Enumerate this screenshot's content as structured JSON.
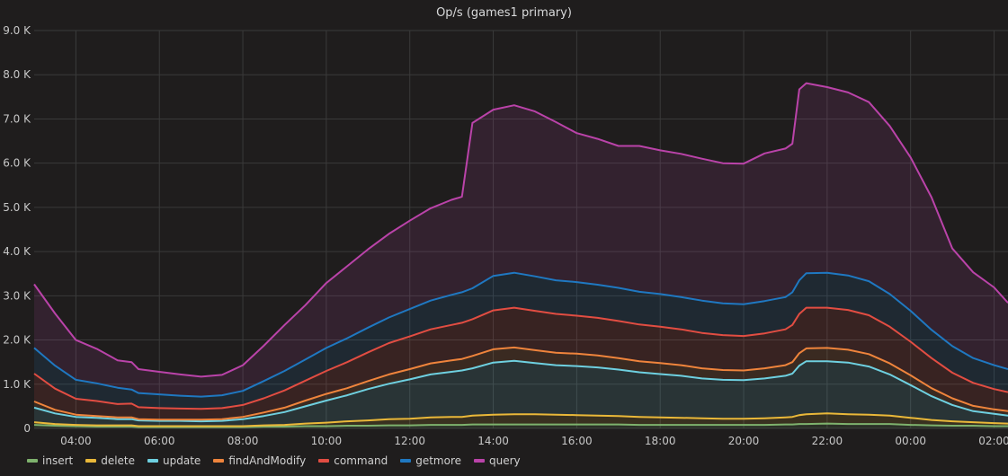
{
  "chart_data": {
    "type": "area",
    "title": "Op/s (games1 primary)",
    "xlabel": "",
    "ylabel": "",
    "ylim": [
      0,
      9000
    ],
    "xlim": [
      "03:00",
      "02:20"
    ],
    "yticks": [
      {
        "value": 0,
        "label": "0"
      },
      {
        "value": 1000,
        "label": "1.0 K"
      },
      {
        "value": 2000,
        "label": "2.0 K"
      },
      {
        "value": 3000,
        "label": "3.0 K"
      },
      {
        "value": 4000,
        "label": "4.0 K"
      },
      {
        "value": 5000,
        "label": "5.0 K"
      },
      {
        "value": 6000,
        "label": "6.0 K"
      },
      {
        "value": 7000,
        "label": "7.0 K"
      },
      {
        "value": 8000,
        "label": "8.0 K"
      },
      {
        "value": 9000,
        "label": "9.0 K"
      }
    ],
    "xticks": [
      "04:00",
      "06:00",
      "08:00",
      "10:00",
      "12:00",
      "14:00",
      "16:00",
      "18:00",
      "20:00",
      "22:00",
      "00:00",
      "02:00"
    ],
    "grid": true,
    "legend_position": "bottom",
    "x": [
      "03:00",
      "03:30",
      "04:00",
      "04:30",
      "05:00",
      "05:20",
      "05:30",
      "06:00",
      "06:30",
      "07:00",
      "07:30",
      "08:00",
      "08:30",
      "09:00",
      "09:30",
      "10:00",
      "10:30",
      "11:00",
      "11:30",
      "12:00",
      "12:30",
      "13:00",
      "13:15",
      "13:30",
      "14:00",
      "14:30",
      "15:00",
      "15:30",
      "16:00",
      "16:30",
      "17:00",
      "17:30",
      "18:00",
      "18:30",
      "19:00",
      "19:30",
      "20:00",
      "20:30",
      "21:00",
      "21:10",
      "21:20",
      "21:30",
      "22:00",
      "22:30",
      "23:00",
      "23:30",
      "00:00",
      "00:30",
      "01:00",
      "01:30",
      "02:00",
      "02:20"
    ],
    "series": [
      {
        "name": "insert",
        "color": "#7eb26d",
        "values": [
          80,
          60,
          50,
          40,
          40,
          40,
          30,
          30,
          30,
          30,
          30,
          30,
          40,
          40,
          50,
          50,
          60,
          60,
          70,
          70,
          80,
          80,
          80,
          90,
          90,
          90,
          90,
          90,
          90,
          90,
          90,
          80,
          80,
          80,
          80,
          80,
          80,
          80,
          90,
          90,
          100,
          100,
          110,
          100,
          100,
          100,
          80,
          70,
          60,
          60,
          50,
          50
        ]
      },
      {
        "name": "delete",
        "color": "#eab839",
        "values": [
          60,
          40,
          30,
          30,
          30,
          30,
          20,
          20,
          20,
          20,
          20,
          20,
          30,
          40,
          60,
          80,
          100,
          120,
          140,
          150,
          170,
          180,
          180,
          200,
          220,
          230,
          230,
          220,
          210,
          200,
          190,
          180,
          170,
          160,
          150,
          140,
          140,
          150,
          160,
          170,
          200,
          220,
          230,
          220,
          210,
          190,
          160,
          120,
          100,
          80,
          70,
          60
        ]
      },
      {
        "name": "update",
        "color": "#6ed0e0",
        "values": [
          330,
          240,
          180,
          170,
          140,
          140,
          130,
          120,
          120,
          110,
          120,
          160,
          210,
          290,
          390,
          500,
          590,
          710,
          800,
          890,
          970,
          1020,
          1050,
          1070,
          1180,
          1210,
          1160,
          1120,
          1110,
          1090,
          1050,
          1010,
          980,
          950,
          900,
          880,
          870,
          900,
          940,
          980,
          1120,
          1200,
          1180,
          1170,
          1090,
          930,
          740,
          540,
          370,
          250,
          210,
          180
        ]
      },
      {
        "name": "findAndModify",
        "color": "#ef843c",
        "values": [
          140,
          80,
          50,
          40,
          40,
          40,
          30,
          30,
          30,
          40,
          40,
          50,
          80,
          100,
          130,
          150,
          160,
          180,
          210,
          230,
          250,
          260,
          260,
          280,
          300,
          300,
          290,
          280,
          280,
          270,
          260,
          250,
          250,
          240,
          230,
          220,
          220,
          230,
          240,
          260,
          280,
          290,
          300,
          290,
          280,
          250,
          220,
          180,
          150,
          120,
          100,
          100
        ]
      },
      {
        "name": "command",
        "color": "#e24d42",
        "values": [
          630,
          480,
          360,
          340,
          300,
          310,
          270,
          260,
          250,
          240,
          250,
          270,
          320,
          390,
          450,
          520,
          590,
          650,
          710,
          740,
          770,
          800,
          820,
          830,
          880,
          900,
          890,
          880,
          860,
          850,
          840,
          830,
          820,
          810,
          800,
          790,
          780,
          790,
          810,
          840,
          890,
          920,
          910,
          900,
          880,
          830,
          760,
          680,
          580,
          520,
          460,
          430
        ]
      },
      {
        "name": "getmore",
        "color": "#1f78c1",
        "values": [
          580,
          520,
          430,
          400,
          370,
          320,
          320,
          310,
          290,
          280,
          290,
          320,
          390,
          440,
          480,
          520,
          540,
          560,
          580,
          620,
          650,
          680,
          690,
          700,
          780,
          790,
          780,
          760,
          760,
          750,
          750,
          740,
          740,
          730,
          730,
          720,
          720,
          730,
          730,
          740,
          760,
          780,
          790,
          780,
          770,
          740,
          700,
          640,
          600,
          560,
          540,
          520
        ]
      },
      {
        "name": "query",
        "color": "#ba43a9",
        "values": [
          1440,
          1180,
          900,
          780,
          620,
          620,
          540,
          510,
          480,
          450,
          460,
          580,
          800,
          1040,
          1230,
          1470,
          1630,
          1770,
          1890,
          2000,
          2090,
          2150,
          2160,
          3740,
          3760,
          3790,
          3730,
          3580,
          3370,
          3300,
          3210,
          3300,
          3250,
          3240,
          3210,
          3170,
          3180,
          3340,
          3360,
          3360,
          4320,
          4300,
          4200,
          4140,
          4050,
          3800,
          3470,
          3000,
          2210,
          1940,
          1760,
          1500
        ]
      }
    ]
  }
}
